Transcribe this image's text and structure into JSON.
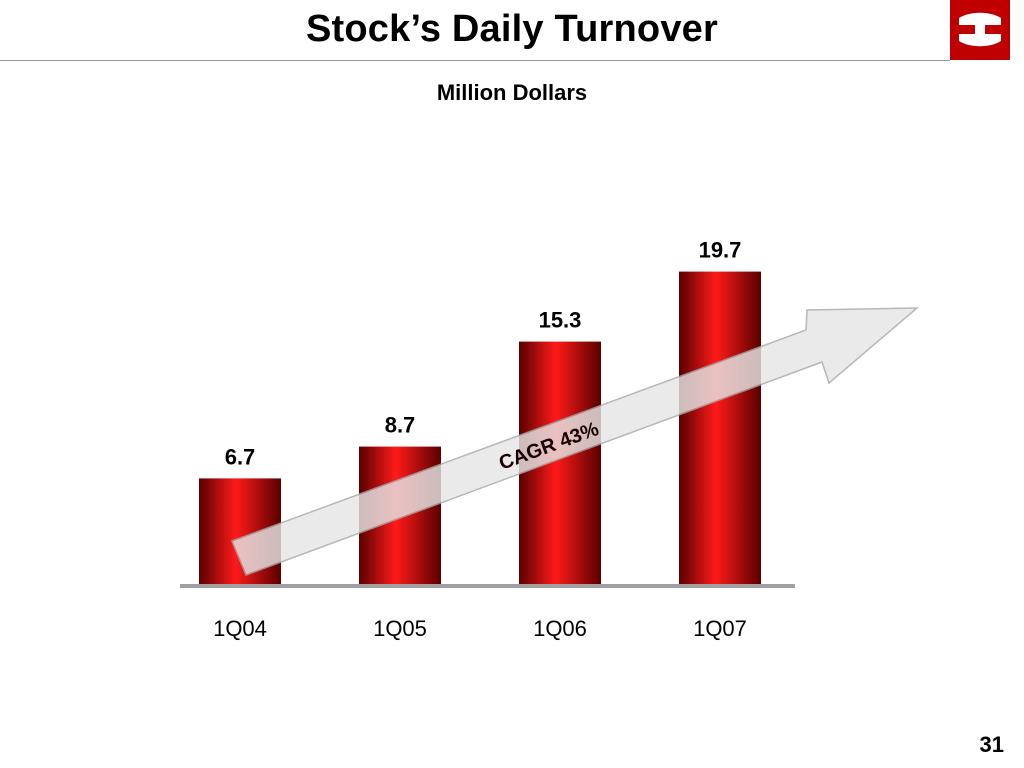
{
  "slide": {
    "title": "Stock’s Daily Turnover",
    "page_number": "31",
    "logo_icon": "bank-logo-icon"
  },
  "colors": {
    "bar_light": "#ff1a1a",
    "bar_mid": "#c40000",
    "bar_dark": "#5a0000",
    "arrow_fill": "#e6e6e6",
    "arrow_stroke": "#a8a8a8",
    "baseline": "#a0a0a0",
    "logo_red": "#c00000"
  },
  "chart_data": {
    "type": "bar",
    "title": "",
    "subtitle": "Million Dollars",
    "categories": [
      "1Q04",
      "1Q05",
      "1Q06",
      "1Q07"
    ],
    "values": [
      6.7,
      8.7,
      15.3,
      19.7
    ],
    "data_labels": [
      "6.7",
      "8.7",
      "15.3",
      "19.7"
    ],
    "ylim": [
      0,
      22
    ],
    "grid": false,
    "legend": "none",
    "annotations": [
      {
        "type": "arrow",
        "text": "CAGR 43%"
      }
    ]
  }
}
